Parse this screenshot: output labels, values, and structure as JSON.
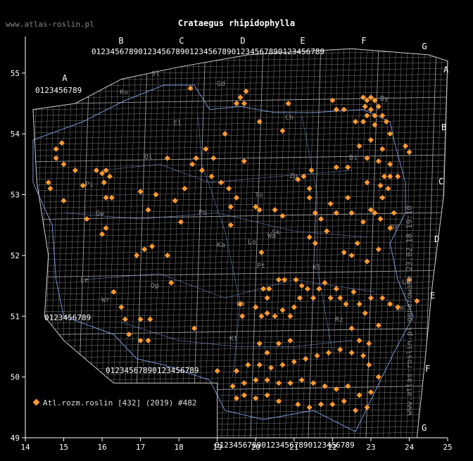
{
  "title": "Crataegus rhipidophylla",
  "site": "www.atlas-roslin.pl",
  "side_note": "www.atlas-roslin.pl generowane 23.02.18 19:10",
  "legend": {
    "marker_color": "#ff9a2e",
    "label": "Atl.rozm.roslin [432] (2019) #482"
  },
  "colors": {
    "background": "#000000",
    "grid": "#9a9a9a",
    "border": "#8fb3ff",
    "point": "#ff9a2e",
    "text": "#ffffff",
    "muted": "#888888"
  },
  "axes": {
    "x_ticks": [
      "14",
      "15",
      "16",
      "17",
      "18",
      "19",
      "20",
      "21",
      "22",
      "23",
      "24",
      "25"
    ],
    "y_ticks": [
      "55",
      "54",
      "53",
      "52",
      "51",
      "50",
      "49"
    ],
    "x_range": [
      14,
      25
    ],
    "y_range": [
      49,
      55.6
    ]
  },
  "grid_columns": [
    "A",
    "B",
    "C",
    "D",
    "E",
    "F",
    "G"
  ],
  "grid_rows": [
    "A",
    "B",
    "C",
    "D",
    "E",
    "F",
    "G"
  ],
  "grid_digits": "0123456789",
  "region_codes": [
    "Sl",
    "Ko",
    "Gd",
    "El",
    "Ch",
    "Ol",
    "Pi",
    "By",
    "Bi",
    "Gw",
    "To",
    "Zg",
    "Po",
    "Wa",
    "Ka",
    "Sk",
    "Lo",
    "Le",
    "Op",
    "Wr",
    "Kt",
    "Pt",
    "Kl",
    "Rz",
    "Lu",
    "Zm",
    "Ch",
    "BP"
  ],
  "chart_data": {
    "type": "scatter",
    "xlabel": "",
    "ylabel": "",
    "xlim": [
      14,
      25
    ],
    "ylim": [
      49,
      55.6
    ],
    "grid": true,
    "legend_position": "bottom-left",
    "series": [
      {
        "name": "Atl.rozm.roslin [432] (2019) #482",
        "points": [
          [
            18.3,
            54.75
          ],
          [
            19.75,
            54.7
          ],
          [
            19.6,
            54.6
          ],
          [
            19.5,
            54.5
          ],
          [
            19.7,
            54.5
          ],
          [
            20.85,
            54.5
          ],
          [
            22.0,
            54.55
          ],
          [
            22.1,
            54.4
          ],
          [
            22.3,
            54.4
          ],
          [
            22.8,
            54.6
          ],
          [
            22.9,
            54.55
          ],
          [
            23.0,
            54.6
          ],
          [
            23.1,
            54.55
          ],
          [
            22.85,
            54.45
          ],
          [
            23.0,
            54.4
          ],
          [
            23.2,
            54.45
          ],
          [
            22.9,
            54.3
          ],
          [
            23.1,
            54.3
          ],
          [
            23.3,
            54.3
          ],
          [
            22.6,
            54.2
          ],
          [
            22.8,
            54.2
          ],
          [
            23.1,
            54.15
          ],
          [
            23.4,
            54.2
          ],
          [
            23.5,
            54.0
          ],
          [
            23.9,
            53.8
          ],
          [
            24.0,
            53.7
          ],
          [
            22.9,
            53.6
          ],
          [
            22.7,
            53.8
          ],
          [
            23.0,
            53.9
          ],
          [
            23.3,
            53.75
          ],
          [
            23.2,
            53.55
          ],
          [
            23.5,
            53.5
          ],
          [
            19.2,
            54.0
          ],
          [
            20.1,
            54.2
          ],
          [
            20.7,
            54.05
          ],
          [
            19.7,
            53.55
          ],
          [
            14.8,
            53.75
          ],
          [
            14.8,
            53.6
          ],
          [
            15.0,
            53.5
          ],
          [
            14.95,
            53.85
          ],
          [
            15.3,
            53.4
          ],
          [
            15.5,
            53.15
          ],
          [
            15.85,
            53.4
          ],
          [
            16.0,
            53.35
          ],
          [
            16.1,
            53.4
          ],
          [
            16.2,
            53.3
          ],
          [
            16.05,
            53.2
          ],
          [
            14.6,
            53.2
          ],
          [
            14.65,
            53.1
          ],
          [
            15.0,
            52.9
          ],
          [
            16.1,
            52.95
          ],
          [
            16.25,
            52.95
          ],
          [
            15.6,
            52.6
          ],
          [
            16.0,
            52.35
          ],
          [
            16.1,
            52.45
          ],
          [
            17.0,
            53.05
          ],
          [
            17.2,
            52.75
          ],
          [
            17.4,
            53.0
          ],
          [
            17.7,
            53.6
          ],
          [
            17.9,
            52.9
          ],
          [
            18.05,
            52.55
          ],
          [
            18.15,
            53.1
          ],
          [
            18.35,
            53.5
          ],
          [
            18.45,
            53.6
          ],
          [
            18.6,
            53.4
          ],
          [
            18.7,
            53.75
          ],
          [
            18.9,
            53.6
          ],
          [
            18.85,
            53.3
          ],
          [
            19.1,
            53.2
          ],
          [
            19.3,
            53.1
          ],
          [
            19.5,
            52.95
          ],
          [
            19.35,
            52.8
          ],
          [
            19.35,
            52.5
          ],
          [
            20.0,
            52.8
          ],
          [
            20.1,
            52.75
          ],
          [
            20.5,
            52.75
          ],
          [
            20.7,
            52.65
          ],
          [
            20.15,
            52.05
          ],
          [
            21.1,
            53.25
          ],
          [
            21.25,
            53.3
          ],
          [
            21.4,
            53.1
          ],
          [
            21.4,
            52.95
          ],
          [
            21.45,
            53.4
          ],
          [
            21.55,
            52.7
          ],
          [
            21.7,
            52.6
          ],
          [
            21.85,
            52.4
          ],
          [
            21.95,
            52.85
          ],
          [
            22.1,
            52.7
          ],
          [
            21.4,
            52.3
          ],
          [
            21.55,
            52.2
          ],
          [
            22.1,
            53.45
          ],
          [
            22.4,
            53.45
          ],
          [
            22.9,
            53.2
          ],
          [
            23.35,
            53.3
          ],
          [
            23.5,
            53.3
          ],
          [
            23.7,
            53.3
          ],
          [
            23.25,
            53.15
          ],
          [
            23.45,
            53.1
          ],
          [
            23.3,
            52.95
          ],
          [
            23.1,
            52.7
          ],
          [
            22.4,
            52.95
          ],
          [
            22.5,
            52.7
          ],
          [
            22.8,
            52.55
          ],
          [
            23.0,
            52.75
          ],
          [
            23.25,
            52.6
          ],
          [
            23.6,
            52.7
          ],
          [
            23.5,
            52.45
          ],
          [
            22.3,
            52.05
          ],
          [
            22.5,
            52.0
          ],
          [
            22.65,
            52.2
          ],
          [
            23.2,
            52.1
          ],
          [
            22.9,
            51.9
          ],
          [
            24.0,
            51.6
          ],
          [
            17.3,
            52.15
          ],
          [
            17.1,
            52.1
          ],
          [
            16.9,
            52.0
          ],
          [
            17.7,
            52.0
          ],
          [
            17.8,
            51.55
          ],
          [
            16.3,
            51.4
          ],
          [
            16.5,
            51.15
          ],
          [
            16.6,
            50.95
          ],
          [
            17.0,
            50.95
          ],
          [
            17.25,
            50.95
          ],
          [
            16.7,
            50.7
          ],
          [
            17.0,
            50.6
          ],
          [
            17.2,
            50.6
          ],
          [
            18.4,
            50.8
          ],
          [
            19.6,
            51.2
          ],
          [
            19.65,
            51.0
          ],
          [
            20.2,
            51.45
          ],
          [
            20.35,
            51.45
          ],
          [
            20.3,
            51.3
          ],
          [
            20.0,
            51.15
          ],
          [
            20.15,
            51.0
          ],
          [
            20.3,
            51.05
          ],
          [
            20.5,
            51.0
          ],
          [
            20.7,
            51.1
          ],
          [
            20.9,
            51.0
          ],
          [
            21.0,
            51.15
          ],
          [
            21.15,
            51.3
          ],
          [
            20.6,
            51.6
          ],
          [
            20.75,
            51.6
          ],
          [
            21.05,
            51.6
          ],
          [
            21.2,
            51.5
          ],
          [
            21.35,
            51.45
          ],
          [
            21.5,
            51.3
          ],
          [
            21.65,
            51.45
          ],
          [
            21.8,
            51.55
          ],
          [
            21.95,
            51.3
          ],
          [
            22.1,
            51.45
          ],
          [
            22.2,
            51.3
          ],
          [
            22.35,
            51.2
          ],
          [
            22.55,
            51.4
          ],
          [
            22.7,
            51.2
          ],
          [
            22.85,
            51.05
          ],
          [
            23.0,
            51.3
          ],
          [
            23.3,
            51.3
          ],
          [
            23.5,
            51.2
          ],
          [
            23.7,
            51.15
          ],
          [
            24.2,
            51.25
          ],
          [
            22.5,
            50.8
          ],
          [
            22.7,
            50.6
          ],
          [
            22.95,
            50.55
          ],
          [
            23.2,
            50.85
          ],
          [
            20.1,
            50.55
          ],
          [
            20.3,
            50.4
          ],
          [
            20.6,
            50.55
          ],
          [
            20.9,
            50.6
          ],
          [
            19.0,
            50.1
          ],
          [
            19.5,
            50.1
          ],
          [
            19.8,
            50.2
          ],
          [
            20.1,
            50.2
          ],
          [
            20.4,
            50.15
          ],
          [
            20.7,
            50.2
          ],
          [
            21.0,
            50.25
          ],
          [
            21.3,
            50.3
          ],
          [
            21.6,
            50.35
          ],
          [
            21.9,
            50.4
          ],
          [
            22.2,
            50.45
          ],
          [
            22.5,
            50.4
          ],
          [
            22.8,
            50.35
          ],
          [
            22.95,
            50.2
          ],
          [
            19.4,
            49.85
          ],
          [
            19.7,
            49.9
          ],
          [
            20.0,
            49.95
          ],
          [
            20.3,
            49.95
          ],
          [
            20.6,
            49.9
          ],
          [
            20.9,
            49.9
          ],
          [
            21.2,
            49.95
          ],
          [
            21.5,
            49.9
          ],
          [
            21.8,
            49.85
          ],
          [
            22.1,
            49.8
          ],
          [
            22.4,
            49.85
          ],
          [
            22.7,
            49.7
          ],
          [
            22.9,
            49.5
          ],
          [
            22.6,
            49.45
          ],
          [
            23.0,
            49.75
          ],
          [
            23.2,
            50.0
          ],
          [
            19.5,
            49.65
          ],
          [
            19.7,
            49.7
          ],
          [
            20.0,
            49.65
          ],
          [
            20.3,
            49.7
          ],
          [
            20.6,
            49.6
          ],
          [
            21.1,
            49.55
          ],
          [
            21.4,
            49.5
          ],
          [
            21.7,
            49.55
          ],
          [
            22.0,
            49.55
          ],
          [
            22.3,
            49.6
          ]
        ]
      }
    ]
  }
}
